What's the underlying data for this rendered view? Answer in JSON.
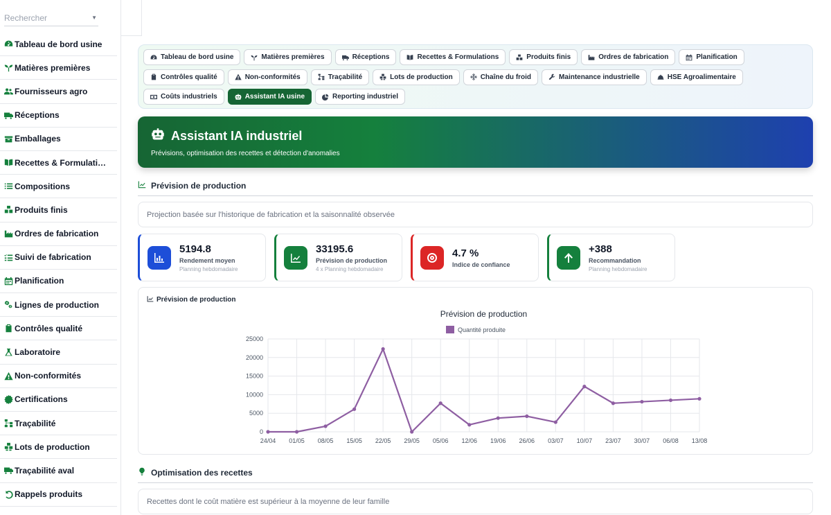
{
  "sidebar": {
    "search_placeholder": "Rechercher",
    "items": [
      {
        "label": "Tableau de bord usine",
        "icon": "gauge-icon"
      },
      {
        "label": "Matières premières",
        "icon": "seedling-icon"
      },
      {
        "label": "Fournisseurs agro",
        "icon": "users-icon"
      },
      {
        "label": "Réceptions",
        "icon": "truck-icon"
      },
      {
        "label": "Emballages",
        "icon": "box-icon"
      },
      {
        "label": "Recettes & Formulati…",
        "icon": "book-icon"
      },
      {
        "label": "Compositions",
        "icon": "list-icon"
      },
      {
        "label": "Produits finis",
        "icon": "cubes-icon"
      },
      {
        "label": "Ordres de fabrication",
        "icon": "industry-icon"
      },
      {
        "label": "Suivi de fabrication",
        "icon": "list-check-icon"
      },
      {
        "label": "Planification",
        "icon": "calendar-icon"
      },
      {
        "label": "Lignes de production",
        "icon": "cogs-icon"
      },
      {
        "label": "Contrôles qualité",
        "icon": "clipboard-check-icon"
      },
      {
        "label": "Laboratoire",
        "icon": "flask-icon"
      },
      {
        "label": "Non-conformités",
        "icon": "warning-icon"
      },
      {
        "label": "Certifications",
        "icon": "certificate-icon"
      },
      {
        "label": "Traçabilité",
        "icon": "sitemap-icon"
      },
      {
        "label": "Lots de production",
        "icon": "boxes-icon"
      },
      {
        "label": "Traçabilité aval",
        "icon": "truck-icon"
      },
      {
        "label": "Rappels produits",
        "icon": "undo-icon"
      }
    ]
  },
  "nav": {
    "chips": [
      {
        "label": "Tableau de bord usine",
        "icon": "gauge-icon",
        "active": false
      },
      {
        "label": "Matières premières",
        "icon": "seedling-icon",
        "active": false
      },
      {
        "label": "Réceptions",
        "icon": "truck-icon",
        "active": false
      },
      {
        "label": "Recettes & Formulations",
        "icon": "book-icon",
        "active": false
      },
      {
        "label": "Produits finis",
        "icon": "cubes-icon",
        "active": false
      },
      {
        "label": "Ordres de fabrication",
        "icon": "industry-icon",
        "active": false
      },
      {
        "label": "Planification",
        "icon": "calendar-icon",
        "active": false
      },
      {
        "label": "Contrôles qualité",
        "icon": "clipboard-check-icon",
        "active": false
      },
      {
        "label": "Non-conformités",
        "icon": "warning-icon",
        "active": false
      },
      {
        "label": "Traçabilité",
        "icon": "sitemap-icon",
        "active": false
      },
      {
        "label": "Lots de production",
        "icon": "boxes-icon",
        "active": false
      },
      {
        "label": "Chaîne du froid",
        "icon": "snowflake-icon",
        "active": false
      },
      {
        "label": "Maintenance industrielle",
        "icon": "wrench-icon",
        "active": false
      },
      {
        "label": "HSE Agroalimentaire",
        "icon": "hard-hat-icon",
        "active": false
      },
      {
        "label": "Coûts industriels",
        "icon": "money-icon",
        "active": false
      },
      {
        "label": "Assistant IA usine",
        "icon": "robot-icon",
        "active": true
      },
      {
        "label": "Reporting industriel",
        "icon": "pie-chart-icon",
        "active": false
      }
    ]
  },
  "hero": {
    "title": "Assistant IA industriel",
    "subtitle": "Prévisions, optimisation des recettes et détection d'anomalies"
  },
  "forecast": {
    "heading": "Prévision de production",
    "info": "Projection basée sur l'historique de fabrication et la saisonnalité observée",
    "kpis": [
      {
        "value": "5194.8",
        "label": "Rendement moyen",
        "note": "Planning hebdomadaire",
        "color": "#1d4ed8",
        "accent": "#1d4ed8",
        "icon": "bar-chart-icon"
      },
      {
        "value": "33195.6",
        "label": "Prévision de production",
        "note": "4 x Planning hebdomadaire",
        "color": "#15803d",
        "accent": "#15803d",
        "icon": "line-chart-icon"
      },
      {
        "value": "4.7 %",
        "label": "Indice de confiance",
        "note": "",
        "color": "#dc2626",
        "accent": "#dc2626",
        "icon": "target-icon"
      },
      {
        "value": "+388",
        "label": "Recommandation",
        "note": "Planning hebdomadaire",
        "color": "#15803d",
        "accent": "#15803d",
        "icon": "arrow-up-icon"
      }
    ],
    "chart_card_title": "Prévision de production"
  },
  "chart_data": {
    "type": "line",
    "title": "Prévision de production",
    "xlabel": "",
    "ylabel": "",
    "categories": [
      "24/04",
      "01/05",
      "08/05",
      "15/05",
      "22/05",
      "29/05",
      "05/06",
      "12/06",
      "19/06",
      "26/06",
      "03/07",
      "10/07",
      "23/07",
      "30/07",
      "06/08",
      "13/08"
    ],
    "series": [
      {
        "name": "Quantité produite",
        "color": "#8e5ea2",
        "values": [
          0,
          0,
          1500,
          6100,
          22300,
          0,
          7700,
          1900,
          3700,
          4200,
          2600,
          12200,
          7700,
          8100,
          8500,
          8900
        ]
      }
    ],
    "ylim": [
      0,
      25000
    ],
    "yticks": [
      0,
      5000,
      10000,
      15000,
      20000,
      25000
    ],
    "ytick_labels": [
      "0",
      "5000",
      "10000",
      "15000",
      "20000",
      "25000"
    ],
    "grid": true,
    "legend": "top"
  },
  "recipes": {
    "heading": "Optimisation des recettes",
    "info": "Recettes dont le coût matière est supérieur à la moyenne de leur famille"
  }
}
